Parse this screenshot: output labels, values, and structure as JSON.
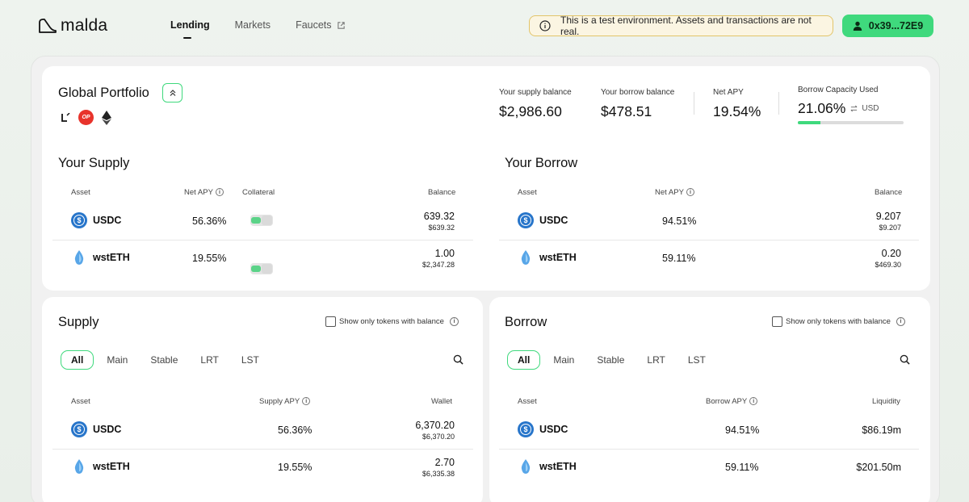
{
  "header": {
    "logo_text": "malda",
    "nav": [
      {
        "label": "Lending",
        "active": true
      },
      {
        "label": "Markets",
        "active": false
      },
      {
        "label": "Faucets",
        "active": false,
        "icon": "external-link-icon"
      }
    ],
    "banner_text": "This is a test environment. Assets and transactions are not real.",
    "wallet_label": "0x39...72E9"
  },
  "portfolio": {
    "title": "Global Portfolio",
    "chains": [
      "linea-icon",
      "OP",
      "ethereum-icon"
    ],
    "stats": {
      "supply_balance_label": "Your supply balance",
      "supply_balance_value": "$2,986.60",
      "borrow_balance_label": "Your borrow balance",
      "borrow_balance_value": "$478.51",
      "net_apy_label": "Net APY",
      "net_apy_value": "19.54%",
      "capacity_label": "Borrow Capacity Used",
      "capacity_value": "21.06%",
      "capacity_unit": "USD",
      "capacity_fraction": 0.2106
    }
  },
  "your_supply": {
    "title": "Your Supply",
    "headers": {
      "asset": "Asset",
      "net_apy": "Net APY",
      "collateral": "Collateral",
      "balance": "Balance"
    },
    "rows": [
      {
        "asset": "USDC",
        "apy": "56.36%",
        "balance": "639.32",
        "balance_usd": "$639.32",
        "collateral": true
      },
      {
        "asset": "wstETH",
        "apy": "19.55%",
        "balance": "1.00",
        "balance_usd": "$2,347.28",
        "collateral": true
      }
    ]
  },
  "your_borrow": {
    "title": "Your Borrow",
    "headers": {
      "asset": "Asset",
      "net_apy": "Net APY",
      "balance": "Balance"
    },
    "rows": [
      {
        "asset": "USDC",
        "apy": "94.51%",
        "balance": "9.207",
        "balance_usd": "$9.207"
      },
      {
        "asset": "wstETH",
        "apy": "59.11%",
        "balance": "0.20",
        "balance_usd": "$469.30"
      }
    ]
  },
  "supply_market": {
    "title": "Supply",
    "checkbox_label": "Show only tokens with balance",
    "tabs": [
      "All",
      "Main",
      "Stable",
      "LRT",
      "LST"
    ],
    "active_tab": "All",
    "headers": {
      "asset": "Asset",
      "apy": "Supply APY",
      "wallet": "Wallet"
    },
    "rows": [
      {
        "asset": "USDC",
        "apy": "56.36%",
        "wallet": "6,370.20",
        "wallet_usd": "$6,370.20"
      },
      {
        "asset": "wstETH",
        "apy": "19.55%",
        "wallet": "2.70",
        "wallet_usd": "$6,335.38"
      }
    ]
  },
  "borrow_market": {
    "title": "Borrow",
    "checkbox_label": "Show only tokens with balance",
    "tabs": [
      "All",
      "Main",
      "Stable",
      "LRT",
      "LST"
    ],
    "active_tab": "All",
    "headers": {
      "asset": "Asset",
      "apy": "Borrow APY",
      "liquidity": "Liquidity"
    },
    "rows": [
      {
        "asset": "USDC",
        "apy": "94.51%",
        "liquidity": "$86.19m"
      },
      {
        "asset": "wstETH",
        "apy": "59.11%",
        "liquidity": "$201.50m"
      }
    ]
  },
  "colors": {
    "accent": "#3fd97d",
    "usdc": "#2775ca",
    "wsteth": "#58a6e8",
    "op": "#e8332b"
  }
}
